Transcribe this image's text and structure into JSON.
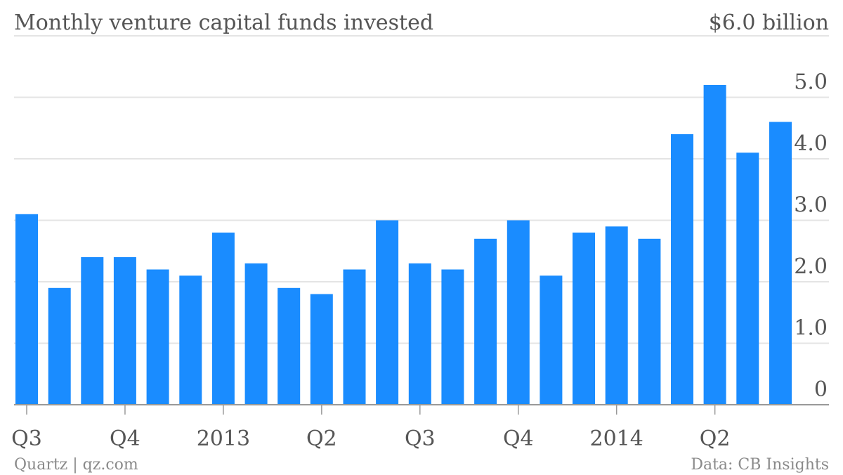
{
  "chart_data": {
    "type": "bar",
    "title": "Monthly venture capital funds invested",
    "top_label": "$6.0 billion",
    "ylim": [
      0,
      6.0
    ],
    "yticks": [
      {
        "value": 0,
        "label": "0"
      },
      {
        "value": 1.0,
        "label": "1.0"
      },
      {
        "value": 2.0,
        "label": "2.0"
      },
      {
        "value": 3.0,
        "label": "3.0"
      },
      {
        "value": 4.0,
        "label": "4.0"
      },
      {
        "value": 5.0,
        "label": "5.0"
      }
    ],
    "grid": true,
    "values": [
      3.1,
      1.9,
      2.4,
      2.4,
      2.2,
      2.1,
      2.8,
      2.3,
      1.9,
      1.8,
      2.2,
      3.0,
      2.3,
      2.2,
      2.7,
      3.0,
      2.1,
      2.8,
      2.9,
      2.7,
      4.4,
      5.2,
      4.1,
      4.6
    ],
    "xticks": [
      {
        "index": 0,
        "label": "Q3"
      },
      {
        "index": 3,
        "label": "Q4"
      },
      {
        "index": 6,
        "label": "2013"
      },
      {
        "index": 9,
        "label": "Q2"
      },
      {
        "index": 12,
        "label": "Q3"
      },
      {
        "index": 15,
        "label": "Q4"
      },
      {
        "index": 18,
        "label": "2014"
      },
      {
        "index": 21,
        "label": "Q2"
      }
    ],
    "bar_color": "#1a8cff",
    "grid_color": "#e4e4e4",
    "axis_color": "#999999"
  },
  "footer": {
    "left": "Quartz | qz.com",
    "right": "Data: CB Insights"
  }
}
